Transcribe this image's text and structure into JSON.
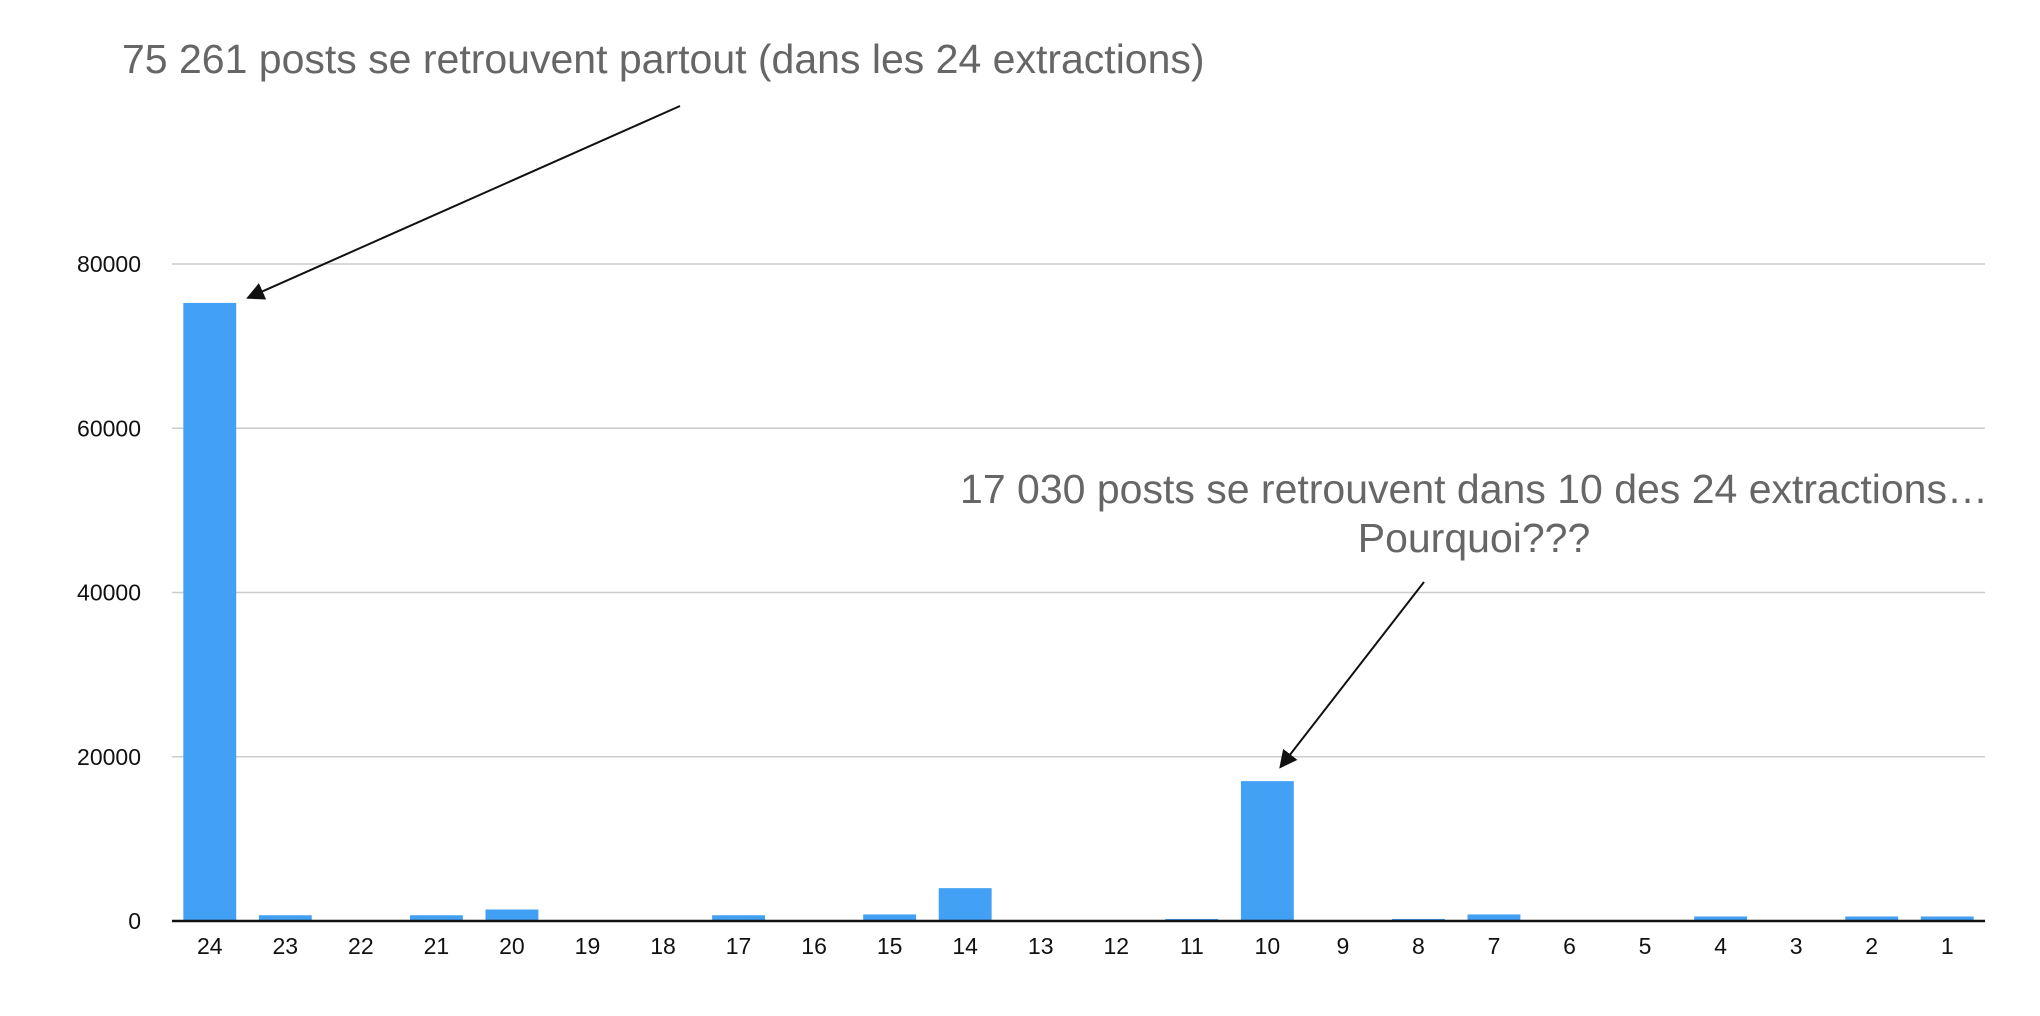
{
  "chart_data": {
    "type": "bar",
    "title": "",
    "xlabel": "",
    "ylabel": "",
    "categories": [
      "24",
      "23",
      "22",
      "21",
      "20",
      "19",
      "18",
      "17",
      "16",
      "15",
      "14",
      "13",
      "12",
      "11",
      "10",
      "9",
      "8",
      "7",
      "6",
      "5",
      "4",
      "3",
      "2",
      "1"
    ],
    "values": [
      75261,
      700,
      0,
      700,
      1400,
      0,
      0,
      700,
      0,
      800,
      4000,
      0,
      0,
      250,
      17030,
      0,
      250,
      800,
      0,
      0,
      550,
      0,
      550,
      550
    ],
    "ylim": [
      0,
      80000
    ],
    "yticks": [
      0,
      20000,
      40000,
      60000,
      80000
    ],
    "ytick_labels": [
      "0",
      "20000",
      "40000",
      "60000",
      "80000"
    ],
    "grid": true,
    "legend": "none",
    "colors": {
      "bar": "#42a1f5",
      "grid": "#cccccc",
      "axis": "#111111",
      "annotation_text": "#666666",
      "arrow": "#111111"
    },
    "annotations": [
      {
        "lines": [
          "75 261 posts se retrouvent partout (dans les 24 extractions)"
        ],
        "target_category": "24",
        "target_value": 75261
      },
      {
        "lines": [
          "17 030 posts se retrouvent dans 10 des 24 extractions…",
          "Pourquoi???"
        ],
        "target_category": "10",
        "target_value": 17030
      }
    ]
  }
}
